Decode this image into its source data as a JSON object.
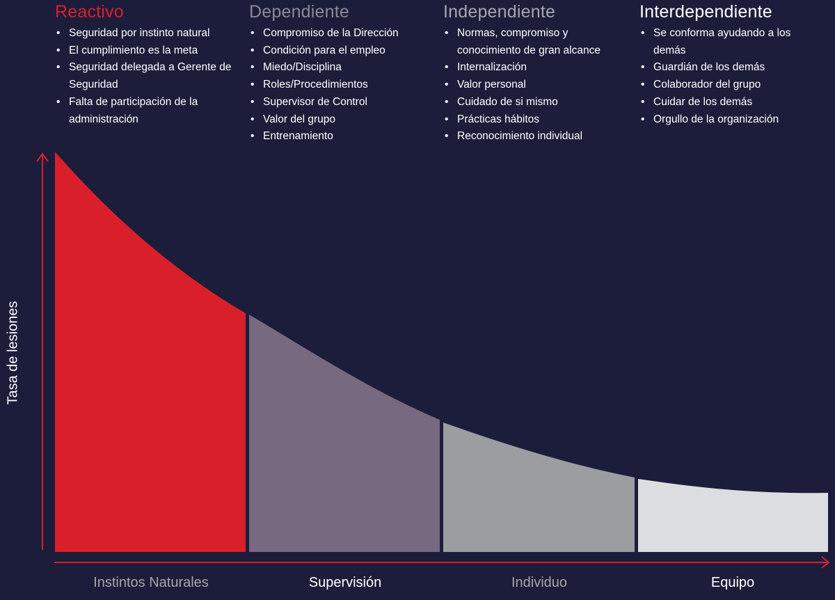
{
  "colors": {
    "background": "#1b1d3a",
    "axis": "#d9202a",
    "reactivo": "#d9202a",
    "dependiente": "#776980",
    "independiente": "#9b9da1",
    "interdependiente": "#dcdde0"
  },
  "stages": [
    {
      "key": "reactivo",
      "title": "Reactivo",
      "title_color": "#d9202a",
      "bullets": [
        "Seguridad por instinto natural",
        "El cumplimiento es la meta",
        "Seguridad delegada a Gerente de Seguridad",
        "Falta de participación de la administración"
      ],
      "footer": "Instintos Naturales",
      "footer_color": "#a6a7ae"
    },
    {
      "key": "dependiente",
      "title": "Dependiente",
      "title_color": "#8f8796",
      "bullets": [
        "Compromiso de la Dirección",
        "Condición para el empleo",
        "Miedo/Disciplina",
        "Roles/Procedimientos",
        "Supervisor de Control",
        "Valor del grupo",
        "Entrenamiento"
      ],
      "footer": "Supervisión",
      "footer_color": "#ffffff"
    },
    {
      "key": "independiente",
      "title": "Independiente",
      "title_color": "#a6a7ae",
      "bullets": [
        "Normas, compromiso y conocimiento de gran alcance",
        "Internalización",
        "Valor personal",
        "Cuidado de si mismo",
        "Prácticas hábitos",
        "Reconocimiento individual"
      ],
      "footer": "Individuo",
      "footer_color": "#a6a7ae"
    },
    {
      "key": "interdependiente",
      "title": "Interdependiente",
      "title_color": "#ffffff",
      "bullets": [
        "Se conforma ayudando a los demás",
        "Guardián de los demás",
        "Colaborador del grupo",
        "Cuidar de los demás",
        "Orgullo de la organización"
      ],
      "footer": "Equipo",
      "footer_color": "#ffffff"
    }
  ],
  "y_axis_label": "Tasa de lesiones"
}
